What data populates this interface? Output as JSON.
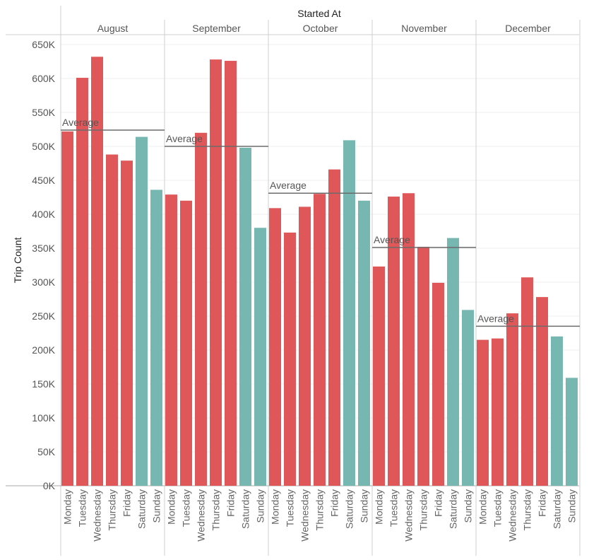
{
  "chart_data": {
    "type": "bar",
    "title": "Started At",
    "ylabel": "Trip Count",
    "ylim": [
      0,
      650000
    ],
    "yticks": [
      {
        "value": 0,
        "label": "0K"
      },
      {
        "value": 50000,
        "label": "50K"
      },
      {
        "value": 100000,
        "label": "100K"
      },
      {
        "value": 150000,
        "label": "150K"
      },
      {
        "value": 200000,
        "label": "200K"
      },
      {
        "value": 250000,
        "label": "250K"
      },
      {
        "value": 300000,
        "label": "300K"
      },
      {
        "value": 350000,
        "label": "350K"
      },
      {
        "value": 400000,
        "label": "400K"
      },
      {
        "value": 450000,
        "label": "450K"
      },
      {
        "value": 500000,
        "label": "500K"
      },
      {
        "value": 550000,
        "label": "550K"
      },
      {
        "value": 600000,
        "label": "600K"
      },
      {
        "value": 650000,
        "label": "650K"
      }
    ],
    "days": [
      "Monday",
      "Tuesday",
      "Wednesday",
      "Thursday",
      "Friday",
      "Saturday",
      "Sunday"
    ],
    "weekday_color": "#e05759",
    "weekend_color": "#76b7b2",
    "average_label": "Average",
    "average_line_color": "#6b6b6b",
    "grid": true,
    "panels": [
      {
        "month": "August",
        "values": [
          522000,
          601000,
          632000,
          488000,
          479000,
          514000,
          436000
        ],
        "average": 524000
      },
      {
        "month": "September",
        "values": [
          429000,
          420000,
          520000,
          628000,
          626000,
          498000,
          380000
        ],
        "average": 500000
      },
      {
        "month": "October",
        "values": [
          409000,
          373000,
          411000,
          430000,
          466000,
          509000,
          420000
        ],
        "average": 431000
      },
      {
        "month": "November",
        "values": [
          323000,
          426000,
          431000,
          352000,
          299000,
          365000,
          259000
        ],
        "average": 351000
      },
      {
        "month": "December",
        "values": [
          215000,
          217000,
          254000,
          307000,
          278000,
          220000,
          159000
        ],
        "average": 235000
      }
    ]
  }
}
